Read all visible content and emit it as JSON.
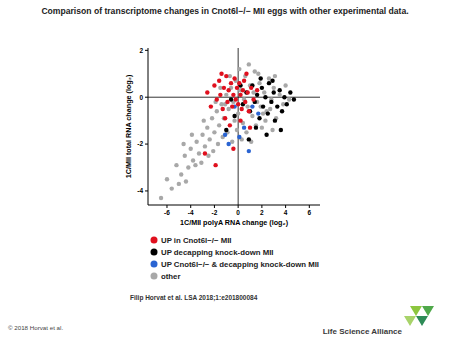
{
  "chart_data": {
    "type": "scatter",
    "title": "Comparison of transcriptome changes in Cnot6l−/− MII eggs with other experimental data.",
    "x_label": "1C/MII polyA RNA change (log₂)",
    "y_label": "1C/MII total RNA change (log₂)",
    "xlim": [
      -7.6,
      6.9
    ],
    "ylim": [
      -4.6,
      2.1
    ],
    "xticks": [
      -6,
      -4,
      -2,
      0,
      2,
      4,
      6
    ],
    "yticks": [
      -4,
      -2,
      0,
      2
    ],
    "grid": false,
    "legend": "bottom",
    "marker": "circle",
    "series": [
      {
        "name": "UP in Cnot6l−/− MII",
        "color": "#e0101e",
        "x": [
          -2.6,
          -2.3,
          -2.0,
          -1.8,
          -1.6,
          -1.5,
          -1.3,
          -1.2,
          -1.0,
          -0.9,
          -0.8,
          -0.6,
          -0.5,
          -0.4,
          -0.3,
          -0.2,
          -0.1,
          0.0,
          0.1,
          0.2,
          0.3,
          0.4,
          0.5,
          0.6,
          0.8,
          0.9,
          1.1,
          1.3,
          1.6,
          -1.1,
          -0.7,
          0.2,
          -2.8,
          -1.9,
          -0.4,
          1.0,
          -1.4,
          0.7
        ],
        "values": [
          0.2,
          -0.4,
          0.5,
          -0.1,
          0.7,
          0.1,
          -0.5,
          0.4,
          0.9,
          -0.2,
          0.3,
          0.6,
          -0.4,
          0.1,
          0.8,
          -0.1,
          0.4,
          -0.3,
          0.6,
          0.1,
          -0.5,
          0.3,
          0.7,
          -0.2,
          0.2,
          -0.6,
          0.4,
          -0.1,
          0.3,
          -0.9,
          -1.2,
          -1.0,
          -2.4,
          -2.9,
          -2.2,
          -1.3,
          1.0,
          1.0
        ]
      },
      {
        "name": "UP decapping knock-down MII",
        "color": "#000000",
        "x": [
          0.4,
          0.7,
          1.0,
          1.2,
          1.4,
          1.6,
          1.8,
          2.0,
          2.1,
          2.3,
          2.5,
          2.6,
          2.8,
          3.0,
          3.1,
          3.3,
          3.5,
          3.7,
          3.9,
          4.1,
          4.4,
          4.7,
          1.5,
          2.4,
          0.9,
          -0.3,
          -1.0,
          1.9,
          2.9,
          0.2,
          -0.6,
          3.6
        ],
        "values": [
          -0.3,
          0.2,
          -0.6,
          0.5,
          -0.2,
          0.1,
          -0.9,
          0.4,
          -0.4,
          0.0,
          -0.7,
          0.6,
          -0.2,
          0.2,
          -1.0,
          -0.4,
          0.3,
          -0.6,
          0.0,
          -0.3,
          0.2,
          -0.1,
          -1.3,
          -1.6,
          -1.8,
          -0.8,
          -1.4,
          0.8,
          0.7,
          0.5,
          -0.1,
          -1.4
        ]
      },
      {
        "name": "UP Cnot6l−/− & decapping knock-down MII",
        "color": "#2a64d2",
        "x": [
          -0.3,
          0.5,
          1.2,
          -1.1,
          0.9,
          -0.8,
          1.7,
          0.1
        ],
        "values": [
          -0.4,
          -1.3,
          -0.4,
          -1.6,
          -2.3,
          -2.0,
          -0.7,
          -1.7
        ]
      },
      {
        "name": "other",
        "color": "#a8a8a8",
        "x": [
          -6.5,
          -6,
          -5.6,
          -5.2,
          -4.8,
          -4.5,
          -4.2,
          -4,
          -3.8,
          -3.5,
          -3.3,
          -3,
          -2.8,
          -2.6,
          -2.4,
          -2.2,
          -2,
          -1.8,
          -1.6,
          -1.4,
          -1.2,
          -1,
          -0.8,
          -0.6,
          -0.4,
          -0.2,
          0,
          0.2,
          0.4,
          0.6,
          0.8,
          1,
          1.2,
          1.4,
          1.6,
          1.8,
          2,
          2.2,
          2.4,
          2.6,
          2.8,
          3,
          3.2,
          3.5,
          3.8,
          4,
          4.3,
          -5,
          -4.4,
          -3.6,
          -3.1,
          -2.5,
          -2.1,
          -1.7,
          -1.3,
          -0.9,
          -0.5,
          -0.1,
          0.3,
          0.7,
          1.1,
          1.5,
          1.9,
          2.3,
          2.7,
          3.1,
          -4.6,
          -3.9,
          -2.9,
          -1.9,
          -1.1,
          -0.3,
          0.5,
          1.3,
          2.1,
          2.9,
          -1.5,
          -0.7,
          0.1,
          0.9,
          1.7
        ],
        "values": [
          -4.3,
          -3.5,
          -3.9,
          -2.9,
          -3.3,
          -2.5,
          -3.0,
          -2.2,
          -2.7,
          -1.9,
          -2.4,
          -1.6,
          -2.1,
          -1.3,
          -1.8,
          -0.9,
          -1.5,
          -0.6,
          -1.2,
          -0.3,
          -0.9,
          0.1,
          -0.5,
          0.4,
          -0.2,
          0.7,
          -0.7,
          0.3,
          -1.1,
          0.9,
          -0.4,
          0.5,
          -0.8,
          1.1,
          -0.2,
          0.6,
          -1.3,
          0.2,
          -0.6,
          0.8,
          -0.1,
          0.4,
          -0.9,
          0.1,
          -0.3,
          0.5,
          -0.1,
          -3.7,
          -3.6,
          -2.9,
          -2.8,
          -2.5,
          -2.3,
          -2.0,
          -1.7,
          -1.5,
          -1.9,
          -1.4,
          -1.8,
          -1.5,
          -1.9,
          -1.2,
          -0.4,
          -1.0,
          -0.5,
          0.9,
          -2.0,
          -1.6,
          -1.0,
          -0.2,
          -0.3,
          -1.0,
          -0.1,
          0.2,
          -0.7,
          -1.4,
          0.4,
          0.9,
          1.2,
          1.4,
          1.0
        ]
      }
    ]
  },
  "slide": {
    "citation": "Filip Horvat et al. LSA 2018;1:e201800084",
    "copyright": "© 2018 Horvat et al.",
    "publisher": "Life Science Alliance"
  }
}
